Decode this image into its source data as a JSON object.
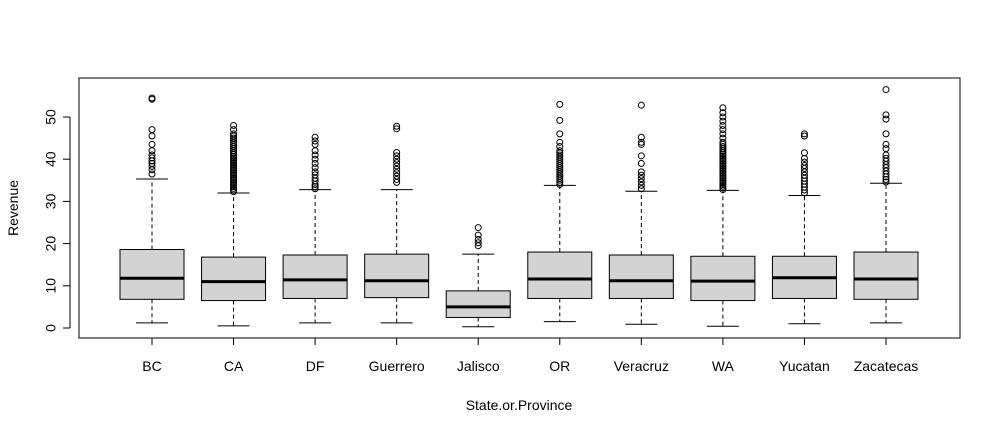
{
  "chart_data": {
    "type": "boxplot",
    "title": "",
    "xlabel": "State.or.Province",
    "ylabel": "Revenue",
    "ylim": [
      -2,
      58
    ],
    "yticks": [
      0,
      10,
      20,
      30,
      40,
      50
    ],
    "grid": false,
    "colors": {
      "box_fill": "#d3d3d3",
      "stroke": "#000000"
    },
    "categories": [
      "BC",
      "CA",
      "DF",
      "Guerrero",
      "Jalisco",
      "OR",
      "Veracruz",
      "WA",
      "Yucatan",
      "Zacatecas"
    ],
    "boxes": [
      {
        "label": "BC",
        "min": 1.2,
        "q1": 6.8,
        "median": 11.8,
        "q3": 18.6,
        "max": 35.3,
        "outliers": [
          36.5,
          37.5,
          38.3,
          39.0,
          39.6,
          40.3,
          41.0,
          42.0,
          43.5,
          45.5,
          47.0,
          54.2,
          54.5
        ]
      },
      {
        "label": "CA",
        "min": 0.5,
        "q1": 6.5,
        "median": 11.0,
        "q3": 16.8,
        "max": 32.0,
        "outliers": [
          32.3,
          32.7,
          33.1,
          33.5,
          33.9,
          34.3,
          34.7,
          35.1,
          35.5,
          35.9,
          36.3,
          36.7,
          37.1,
          37.5,
          37.9,
          38.3,
          38.7,
          39.1,
          39.5,
          39.9,
          40.3,
          40.7,
          41.1,
          41.5,
          42.0,
          42.5,
          43.0,
          43.5,
          44.0,
          44.5,
          45.0,
          45.5,
          46.0,
          47.0,
          48.0
        ]
      },
      {
        "label": "DF",
        "min": 1.2,
        "q1": 7.0,
        "median": 11.4,
        "q3": 17.3,
        "max": 32.8,
        "outliers": [
          33.0,
          33.5,
          34.0,
          34.8,
          35.5,
          36.3,
          37.0,
          38.0,
          39.0,
          40.0,
          41.0,
          42.0,
          43.5,
          44.3,
          45.2
        ]
      },
      {
        "label": "Guerrero",
        "min": 1.2,
        "q1": 7.2,
        "median": 11.2,
        "q3": 17.5,
        "max": 32.8,
        "outliers": [
          34.5,
          35.2,
          36.0,
          36.8,
          37.6,
          38.4,
          39.2,
          40.0,
          40.8,
          41.6,
          47.2,
          47.8
        ]
      },
      {
        "label": "Jalisco",
        "min": 0.3,
        "q1": 2.5,
        "median": 5.0,
        "q3": 8.8,
        "max": 17.5,
        "outliers": [
          19.5,
          20.2,
          21.0,
          22.0,
          23.8
        ]
      },
      {
        "label": "OR",
        "min": 1.5,
        "q1": 7.0,
        "median": 11.6,
        "q3": 18.0,
        "max": 33.8,
        "outliers": [
          34.0,
          34.5,
          35.0,
          35.5,
          36.0,
          36.5,
          37.0,
          37.5,
          38.0,
          38.5,
          39.0,
          39.5,
          40.0,
          40.5,
          41.0,
          41.5,
          42.0,
          43.0,
          44.0,
          46.0,
          49.2,
          53.0
        ]
      },
      {
        "label": "Veracruz",
        "min": 0.9,
        "q1": 7.0,
        "median": 11.2,
        "q3": 17.3,
        "max": 32.4,
        "outliers": [
          33.0,
          33.8,
          34.6,
          35.4,
          36.2,
          37.0,
          39.0,
          40.8,
          43.5,
          44.0,
          45.2,
          52.8
        ]
      },
      {
        "label": "WA",
        "min": 0.4,
        "q1": 6.5,
        "median": 11.1,
        "q3": 17.0,
        "max": 32.6,
        "outliers": [
          32.8,
          33.2,
          33.6,
          34.0,
          34.4,
          34.8,
          35.2,
          35.6,
          36.0,
          36.4,
          36.8,
          37.2,
          37.6,
          38.0,
          38.4,
          38.8,
          39.2,
          39.6,
          40.0,
          40.4,
          40.8,
          41.2,
          41.6,
          42.0,
          42.5,
          43.0,
          43.5,
          44.0,
          45.0,
          46.0,
          47.0,
          48.0,
          49.0,
          50.0,
          51.0,
          52.2
        ]
      },
      {
        "label": "Yucatan",
        "min": 1.0,
        "q1": 7.0,
        "median": 11.9,
        "q3": 17.0,
        "max": 31.4,
        "outliers": [
          32.0,
          32.7,
          33.4,
          34.1,
          34.8,
          35.5,
          36.2,
          37.0,
          37.8,
          38.5,
          39.3,
          40.2,
          41.5,
          45.5,
          46.0
        ]
      },
      {
        "label": "Zacatecas",
        "min": 1.2,
        "q1": 6.8,
        "median": 11.6,
        "q3": 18.0,
        "max": 34.3,
        "outliers": [
          34.6,
          35.2,
          35.8,
          36.5,
          37.2,
          38.0,
          38.7,
          39.5,
          40.2,
          41.0,
          42.5,
          43.5,
          46.0,
          49.5,
          50.5,
          56.5
        ]
      }
    ]
  }
}
